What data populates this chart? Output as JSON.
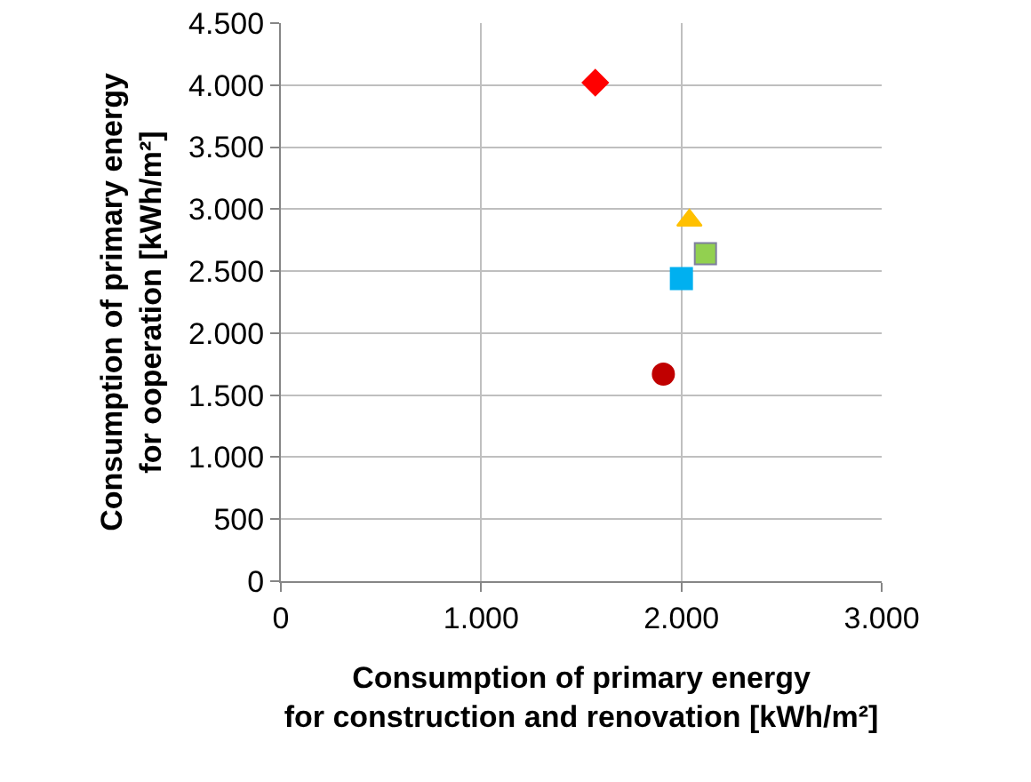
{
  "chart_data": {
    "type": "scatter",
    "xlabel": "Consumption of primary energy\nfor construction and renovation [kWh/m²]",
    "ylabel": "Consumption of primary energy\nfor ooperation [kWh/m²]",
    "xlim": [
      0,
      3000
    ],
    "xticks": [
      {
        "value": 0,
        "label": "0"
      },
      {
        "value": 1000,
        "label": "1.000"
      },
      {
        "value": 2000,
        "label": "2.000"
      },
      {
        "value": 3000,
        "label": "3.000"
      }
    ],
    "ylim": [
      0,
      4500
    ],
    "yticks": [
      {
        "value": 0,
        "label": "0"
      },
      {
        "value": 500,
        "label": "500"
      },
      {
        "value": 1000,
        "label": "1.000"
      },
      {
        "value": 1500,
        "label": "1.500"
      },
      {
        "value": 2000,
        "label": "2.000"
      },
      {
        "value": 2500,
        "label": "2.500"
      },
      {
        "value": 3000,
        "label": "3.000"
      },
      {
        "value": 3500,
        "label": "3.500"
      },
      {
        "value": 4000,
        "label": "4.000"
      },
      {
        "value": 4500,
        "label": "4.500"
      }
    ],
    "grid": true,
    "series": [
      {
        "color": "#ff0000",
        "marker": "diamond",
        "x": [
          1570
        ],
        "values": [
          4020
        ]
      },
      {
        "color": "#ffc000",
        "marker": "triangle",
        "x": [
          2040
        ],
        "values": [
          2910
        ]
      },
      {
        "color": "#92d050",
        "marker": "square",
        "x": [
          2120
        ],
        "values": [
          2640
        ]
      },
      {
        "color": "#00b0f0",
        "marker": "square",
        "x": [
          2000
        ],
        "values": [
          2440
        ]
      },
      {
        "color": "#c00000",
        "marker": "circle",
        "x": [
          1910
        ],
        "values": [
          1670
        ]
      }
    ]
  }
}
